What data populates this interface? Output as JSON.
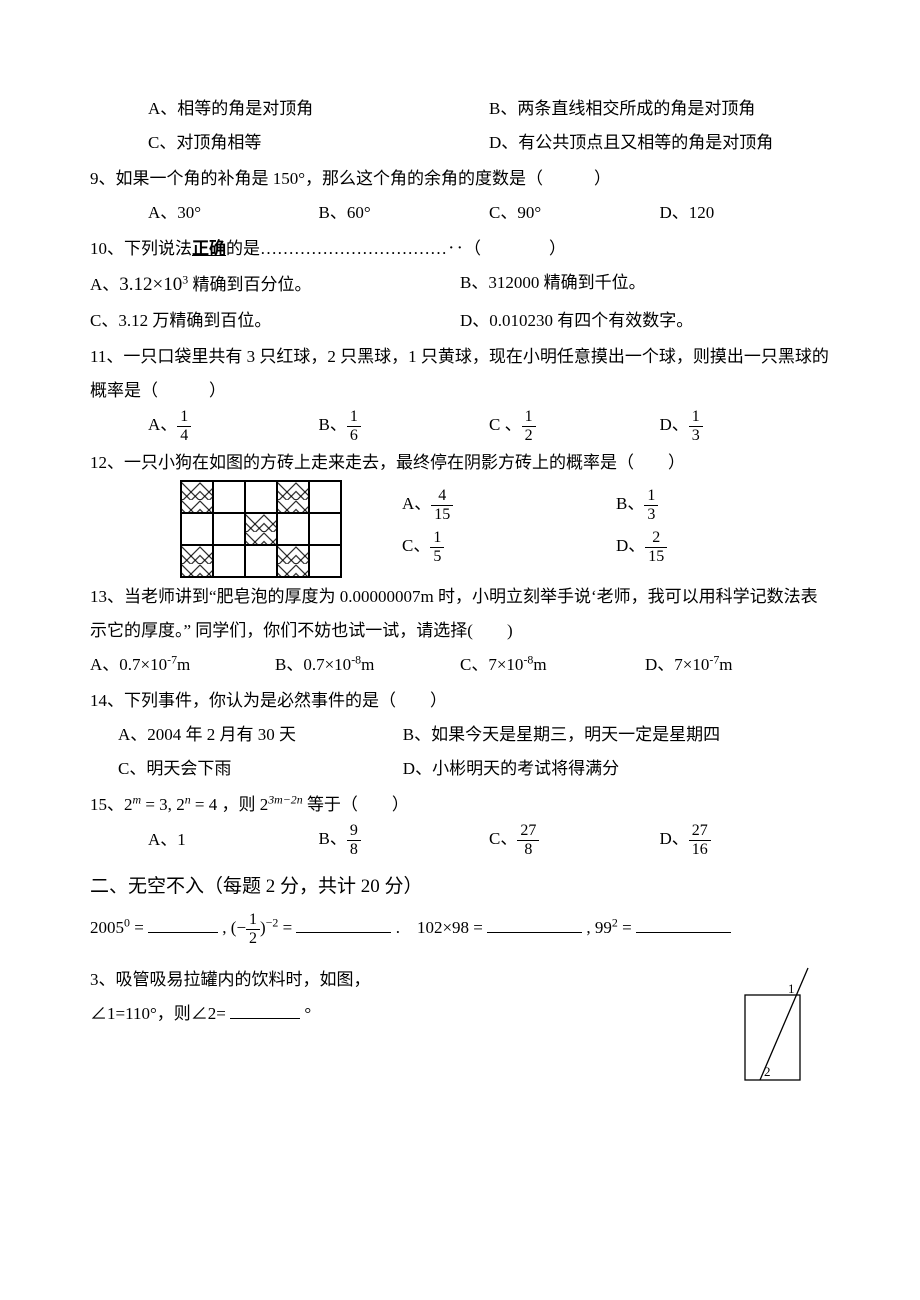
{
  "q8": {
    "A": "A、相等的角是对顶角",
    "B": "B、两条直线相交所成的角是对顶角",
    "C": "C、对顶角相等",
    "D": "D、有公共顶点且又相等的角是对顶角"
  },
  "q9": {
    "stem": "9、如果一个角的补角是 150°，那么这个角的余角的度数是（　　　）",
    "A": "A、30°",
    "B": "B、60°",
    "C": "C、90°",
    "D": "D、120"
  },
  "q10": {
    "stem_pre": "10、下列说法",
    "stem_bold": "正确",
    "stem_post": "的是……………………………‥（　　　　）",
    "A_pre": "A、",
    "A_num": "3.12×10",
    "A_sup": "3",
    "A_post": " 精确到百分位。",
    "B": "B、312000 精确到千位。",
    "C": "C、3.12 万精确到百位。",
    "D": "D、0.010230 有四个有效数字。"
  },
  "q11": {
    "stem": "11、一只口袋里共有 3 只红球，2 只黑球，1 只黄球，现在小明任意摸出一个球，则摸出一只黑球的概率是（　　　）",
    "A": {
      "label": "A、",
      "num": "1",
      "den": "4"
    },
    "B": {
      "label": "B、",
      "num": "1",
      "den": "6"
    },
    "C": {
      "label": "C 、",
      "num": "1",
      "den": "2"
    },
    "D": {
      "label": "D、",
      "num": "1",
      "den": "3"
    }
  },
  "q12": {
    "stem": "12、一只小狗在如图的方砖上走来走去，最终停在阴影方砖上的概率是（　　）",
    "A": {
      "label": "A、",
      "num": "4",
      "den": "15"
    },
    "B": {
      "label": "B、",
      "num": "1",
      "den": "3"
    },
    "C": {
      "label": "C、",
      "num": "1",
      "den": "5"
    },
    "D": {
      "label": "D、",
      "num": "2",
      "den": "15"
    },
    "grid_hatch": [
      true,
      false,
      false,
      true,
      false,
      false,
      false,
      true,
      false,
      false,
      true,
      false,
      false,
      true,
      false
    ],
    "grid_cols": 5,
    "grid_rows": 3
  },
  "q13": {
    "stem": "13、当老师讲到“肥皂泡的厚度为 0.00000007m 时，小明立刻举手说‘老师，我可以用科学记数法表示它的厚度。” 同学们，你们不妨也试一试，请选择(　　)",
    "A": {
      "t": "A、0.7×10",
      "s": "-7",
      "u": "m"
    },
    "B": {
      "t": "B、0.7×10",
      "s": "-8",
      "u": "m"
    },
    "C": {
      "t": "C、7×10",
      "s": "-8",
      "u": "m"
    },
    "D": {
      "t": "D、7×10",
      "s": "-7",
      "u": "m"
    }
  },
  "q14": {
    "stem": "14、下列事件，你认为是必然事件的是（　　）",
    "A": "A、2004 年 2 月有 30 天",
    "B": "B、如果今天是星期三，明天一定是星期四",
    "C": "C、明天会下雨",
    "D": "D、小彬明天的考试将得满分"
  },
  "q15": {
    "stem_pre": "15、",
    "stem_m1": "2",
    "stem_s1": "m",
    "stem_eq1": " = 3, ",
    "stem_m2": "2",
    "stem_s2": "n",
    "stem_eq2": " = 4 ，则 ",
    "stem_m3": "2",
    "stem_s3": "3m−2n",
    "stem_post": " 等于（　　）",
    "A": "A、1",
    "B": {
      "label": "B、",
      "num": "9",
      "den": "8"
    },
    "C": {
      "label": "C、",
      "num": "27",
      "den": "8"
    },
    "D": {
      "label": "D、",
      "num": "27",
      "den": "16"
    }
  },
  "section2": {
    "title": "二、无空不入（每题 2 分，共计 20 分）",
    "fill1_a_pre": "2005",
    "fill1_a_sup": "0",
    "fill1_a_post": " = ",
    "fill1_b_pre": " , (−",
    "fill1_b_num": "1",
    "fill1_b_den": "2",
    "fill1_b_mid": ")",
    "fill1_b_sup": "−2",
    "fill1_b_post": " = ",
    "fill1_c": ".　102×98 = ",
    "fill1_d_pre": " , 99",
    "fill1_d_sup": "2",
    "fill1_d_post": " = "
  },
  "q_fill3": {
    "line1": "3、吸管吸易拉罐内的饮料时，如图，",
    "line2_pre": "∠1=110°，则∠2= ",
    "line2_post": " °",
    "label1": "1",
    "label2": "2"
  },
  "colors": {
    "text": "#000000",
    "bg": "#ffffff",
    "border": "#000000"
  }
}
